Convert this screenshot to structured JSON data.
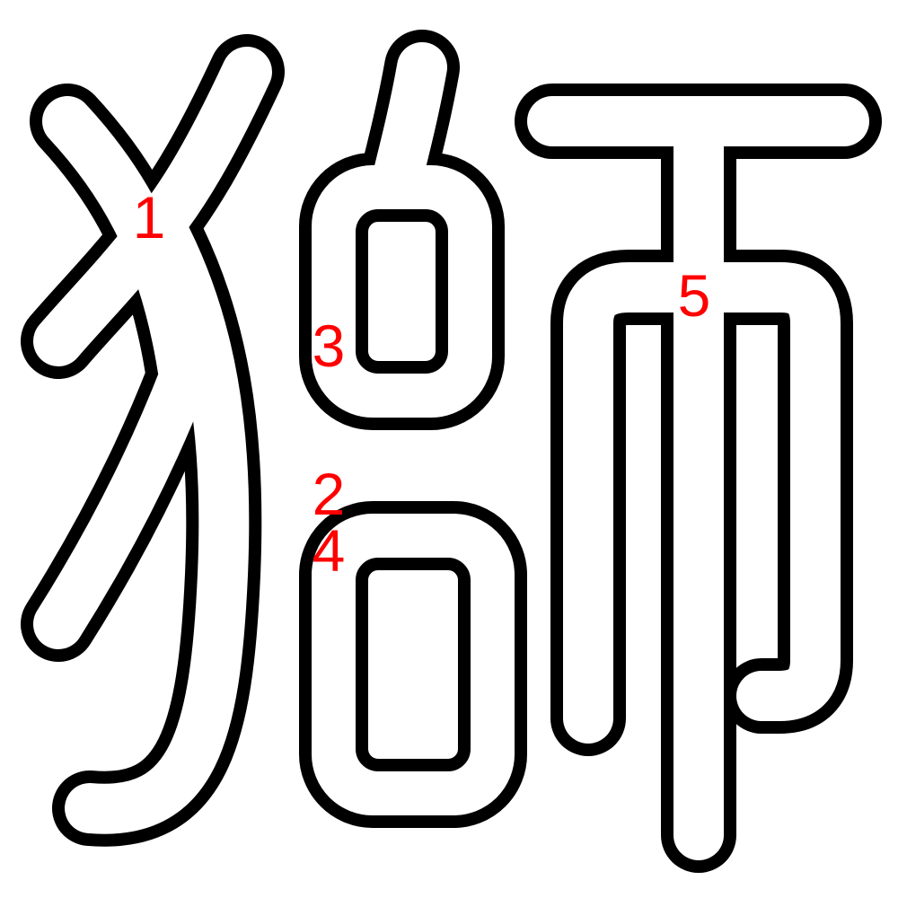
{
  "diagram": {
    "character": "獅",
    "stroke_numbers": [
      "1",
      "2",
      "3",
      "4",
      "5"
    ],
    "colors": {
      "outline": "#000000",
      "fill": "#ffffff",
      "label": "#ff0000",
      "background": "#ffffff"
    }
  }
}
